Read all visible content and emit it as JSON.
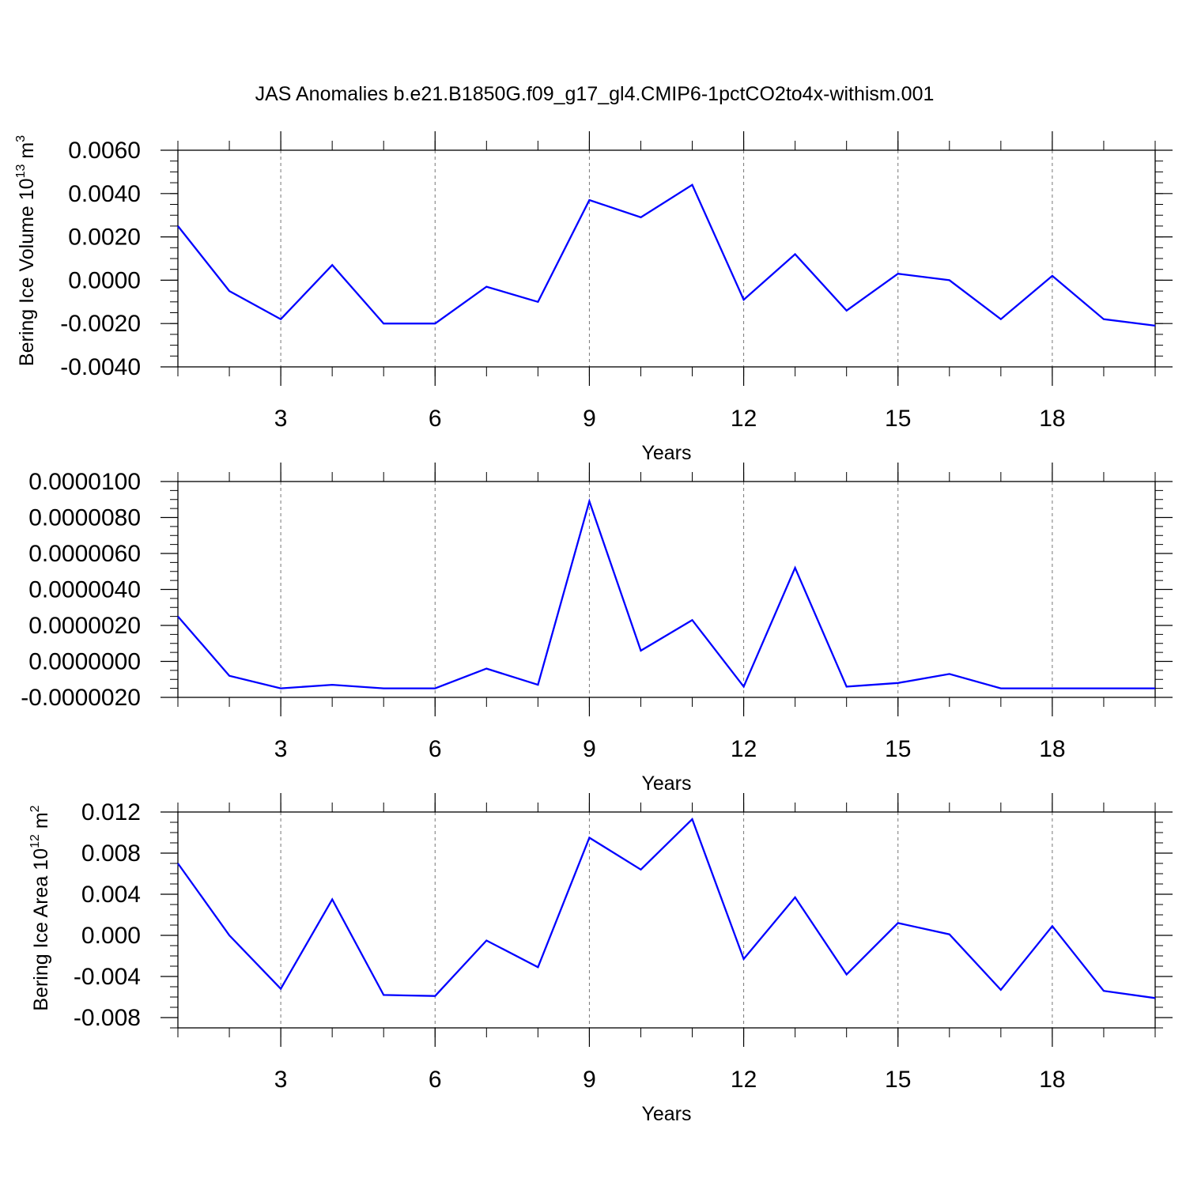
{
  "figure": {
    "title": "JAS Anomalies b.e21.B1850G.f09_g17_gl4.CMIP6-1pctCO2to4x-withism.001"
  },
  "colors": {
    "series": "#0000ff",
    "axis": "#000000",
    "grid": "#777777",
    "background": "#ffffff"
  },
  "chart_data": [
    {
      "type": "line",
      "title": "",
      "xlabel": "Years",
      "ylabel": "Bering Ice Volume 10",
      "ylabel_sup": "13",
      "ylabel_unit": " m",
      "ylabel_unit_sup": "3",
      "xlim": [
        1,
        20
      ],
      "ylim": [
        -0.004,
        0.006
      ],
      "x_ticks": [
        3,
        6,
        9,
        12,
        15,
        18
      ],
      "x_tick_labels": [
        "3",
        "6",
        "9",
        "12",
        "15",
        "18"
      ],
      "x_minor_ticks": [
        1,
        2,
        3,
        4,
        5,
        6,
        7,
        8,
        9,
        10,
        11,
        12,
        13,
        14,
        15,
        16,
        17,
        18,
        19,
        20
      ],
      "y_ticks": [
        -0.004,
        -0.002,
        0.0,
        0.002,
        0.004,
        0.006
      ],
      "y_tick_labels": [
        "-0.0040",
        "-0.0020",
        "0.0000",
        "0.0020",
        "0.0040",
        "0.0060"
      ],
      "y_minor_step": 0.0005,
      "grid": "vertical dashed at major x ticks",
      "series": [
        {
          "x": [
            1,
            2,
            3,
            4,
            5,
            6,
            7,
            8,
            9,
            10,
            11,
            12,
            13,
            14,
            15,
            16,
            17,
            18,
            19,
            20
          ],
          "values": [
            0.0025,
            -0.0005,
            -0.0018,
            0.0007,
            -0.002,
            -0.002,
            -0.0003,
            -0.001,
            0.0037,
            0.0029,
            0.0044,
            -0.0009,
            0.0012,
            -0.0014,
            0.0003,
            0.0,
            -0.0018,
            0.0002,
            -0.0018,
            -0.0021
          ]
        }
      ]
    },
    {
      "type": "line",
      "title": "",
      "xlabel": "Years",
      "ylabel": "",
      "xlim": [
        1,
        20
      ],
      "ylim": [
        -2e-06,
        1e-05
      ],
      "x_ticks": [
        3,
        6,
        9,
        12,
        15,
        18
      ],
      "x_tick_labels": [
        "3",
        "6",
        "9",
        "12",
        "15",
        "18"
      ],
      "x_minor_ticks": [
        1,
        2,
        3,
        4,
        5,
        6,
        7,
        8,
        9,
        10,
        11,
        12,
        13,
        14,
        15,
        16,
        17,
        18,
        19,
        20
      ],
      "y_ticks": [
        -2e-06,
        0.0,
        2e-06,
        4e-06,
        6e-06,
        8e-06,
        1e-05
      ],
      "y_tick_labels": [
        "-0.0000020",
        "0.0000000",
        "0.0000020",
        "0.0000040",
        "0.0000060",
        "0.0000080",
        "0.0000100"
      ],
      "y_minor_step": 5e-07,
      "grid": "vertical dashed at major x ticks",
      "series": [
        {
          "x": [
            1,
            2,
            3,
            4,
            5,
            6,
            7,
            8,
            9,
            10,
            11,
            12,
            13,
            14,
            15,
            16,
            17,
            18,
            19,
            20
          ],
          "values": [
            2.5e-06,
            -8e-07,
            -1.5e-06,
            -1.3e-06,
            -1.5e-06,
            -1.5e-06,
            -4e-07,
            -1.3e-06,
            8.9e-06,
            6e-07,
            2.3e-06,
            -1.4e-06,
            5.2e-06,
            -1.4e-06,
            -1.2e-06,
            -7e-07,
            -1.5e-06,
            -1.5e-06,
            -1.5e-06,
            -1.5e-06
          ]
        }
      ]
    },
    {
      "type": "line",
      "title": "",
      "xlabel": "Years",
      "ylabel": "Bering Ice Area 10",
      "ylabel_sup": "12",
      "ylabel_unit": " m",
      "ylabel_unit_sup": "2",
      "xlim": [
        1,
        20
      ],
      "ylim": [
        -0.009,
        0.012
      ],
      "x_ticks": [
        3,
        6,
        9,
        12,
        15,
        18
      ],
      "x_tick_labels": [
        "3",
        "6",
        "9",
        "12",
        "15",
        "18"
      ],
      "x_minor_ticks": [
        1,
        2,
        3,
        4,
        5,
        6,
        7,
        8,
        9,
        10,
        11,
        12,
        13,
        14,
        15,
        16,
        17,
        18,
        19,
        20
      ],
      "y_ticks": [
        -0.008,
        -0.004,
        0.0,
        0.004,
        0.008,
        0.012
      ],
      "y_tick_labels": [
        "-0.008",
        "-0.004",
        "0.000",
        "0.004",
        "0.008",
        "0.012"
      ],
      "y_minor_step": 0.001,
      "grid": "vertical dashed at major x ticks",
      "series": [
        {
          "x": [
            1,
            2,
            3,
            4,
            5,
            6,
            7,
            8,
            9,
            10,
            11,
            12,
            13,
            14,
            15,
            16,
            17,
            18,
            19,
            20
          ],
          "values": [
            0.007,
            0.0,
            -0.0052,
            0.0035,
            -0.0058,
            -0.0059,
            -0.0005,
            -0.0031,
            0.0095,
            0.0064,
            0.0113,
            -0.0023,
            0.0037,
            -0.0038,
            0.0012,
            0.0001,
            -0.0053,
            0.0009,
            -0.0054,
            -0.0061
          ]
        }
      ]
    }
  ]
}
